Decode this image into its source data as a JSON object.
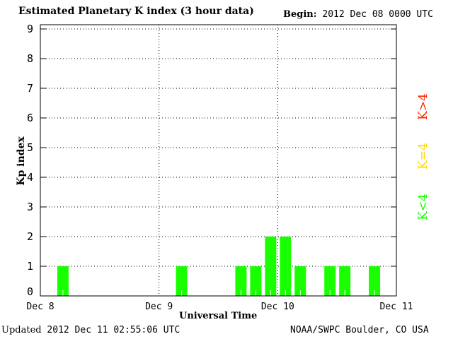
{
  "header": {
    "title": "Estimated Planetary K index (3 hour data)",
    "begin_label": "Begin:",
    "begin_value": "2012 Dec 08 0000 UTC"
  },
  "footer": {
    "updated_label": "Updated",
    "updated_value": "2012 Dec 11 02:55:06 UTC",
    "credit": "NOAA/SWPC Boulder, CO USA"
  },
  "legend": [
    {
      "label": "K>4",
      "color": "#ff2a00"
    },
    {
      "label": "K=4",
      "color": "#ffd700"
    },
    {
      "label": "K<4",
      "color": "#19ff00"
    }
  ],
  "chart_data": {
    "type": "bar",
    "title": "Estimated Planetary K index (3 hour data)",
    "xlabel": "Universal Time",
    "ylabel": "Kp index",
    "ylim": [
      0,
      9
    ],
    "xlim": [
      "2012-12-08 00:00",
      "2012-12-11 00:00"
    ],
    "x_tick_labels": [
      "Dec 8",
      "Dec 9",
      "Dec 10",
      "Dec 11"
    ],
    "y_tick_labels": [
      "0",
      "1",
      "2",
      "3",
      "4",
      "5",
      "6",
      "7",
      "8",
      "9"
    ],
    "grid": true,
    "bar_interval_hours": 3,
    "bar_color": "#19ff00",
    "x": [
      "2012-12-08 03:00",
      "2012-12-09 03:00",
      "2012-12-09 15:00",
      "2012-12-09 18:00",
      "2012-12-09 21:00",
      "2012-12-10 00:00",
      "2012-12-10 03:00",
      "2012-12-10 09:00",
      "2012-12-10 12:00",
      "2012-12-10 18:00"
    ],
    "values": [
      1,
      1,
      1,
      1,
      2,
      2,
      1,
      1,
      1,
      1
    ]
  }
}
